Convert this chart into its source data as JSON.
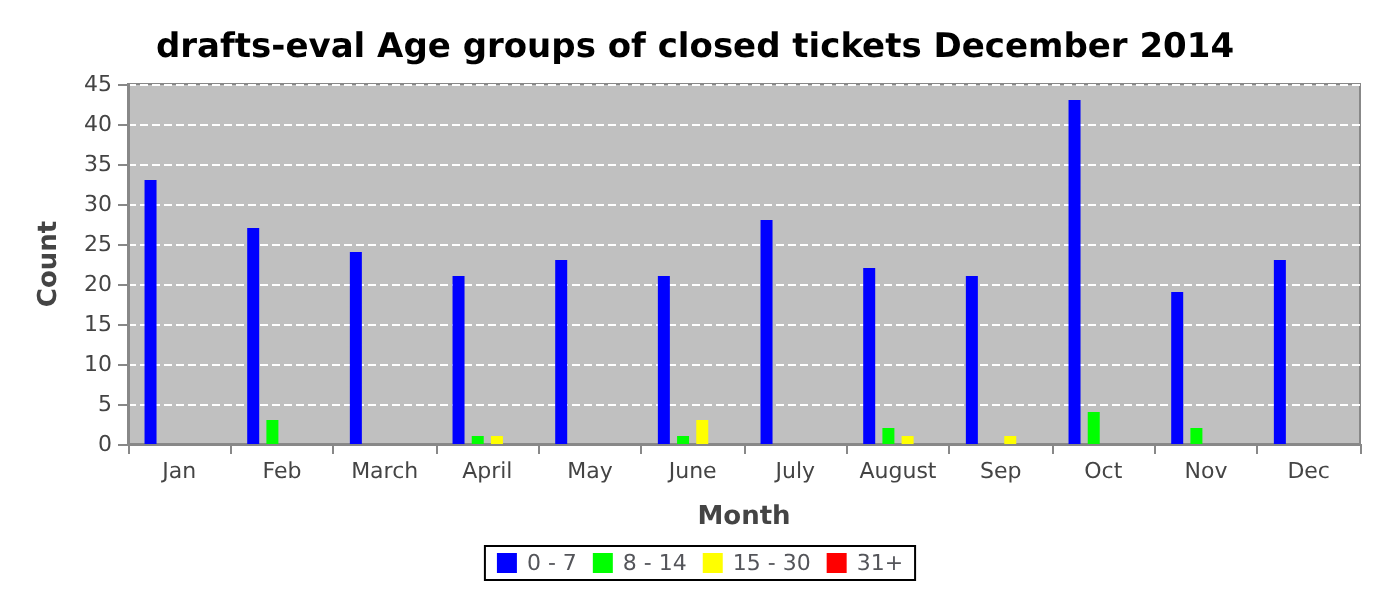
{
  "chart_data": {
    "type": "bar",
    "title": "drafts-eval Age groups of closed tickets December 2014",
    "xlabel": "Month",
    "ylabel": "Count",
    "categories": [
      "Jan",
      "Feb",
      "March",
      "April",
      "May",
      "June",
      "July",
      "August",
      "Sep",
      "Oct",
      "Nov",
      "Dec"
    ],
    "series": [
      {
        "name": "0 - 7",
        "color": "#0000ff",
        "values": [
          33,
          27,
          24,
          21,
          23,
          21,
          28,
          22,
          21,
          43,
          19,
          23
        ]
      },
      {
        "name": "8 - 14",
        "color": "#00ff00",
        "values": [
          0,
          3,
          0,
          1,
          0,
          1,
          0,
          2,
          0,
          4,
          2,
          0
        ]
      },
      {
        "name": "15 - 30",
        "color": "#ffff00",
        "values": [
          0,
          0,
          0,
          1,
          0,
          3,
          0,
          1,
          1,
          0,
          0,
          0
        ]
      },
      {
        "name": "31+",
        "color": "#ff0000",
        "values": [
          0,
          0,
          0,
          0,
          0,
          0,
          0,
          0,
          0,
          0,
          0,
          0
        ]
      }
    ],
    "ylim": [
      0,
      45
    ],
    "yticks": [
      0,
      5,
      10,
      15,
      20,
      25,
      30,
      35,
      40,
      45
    ],
    "grid": "y",
    "legend": "bottom"
  }
}
